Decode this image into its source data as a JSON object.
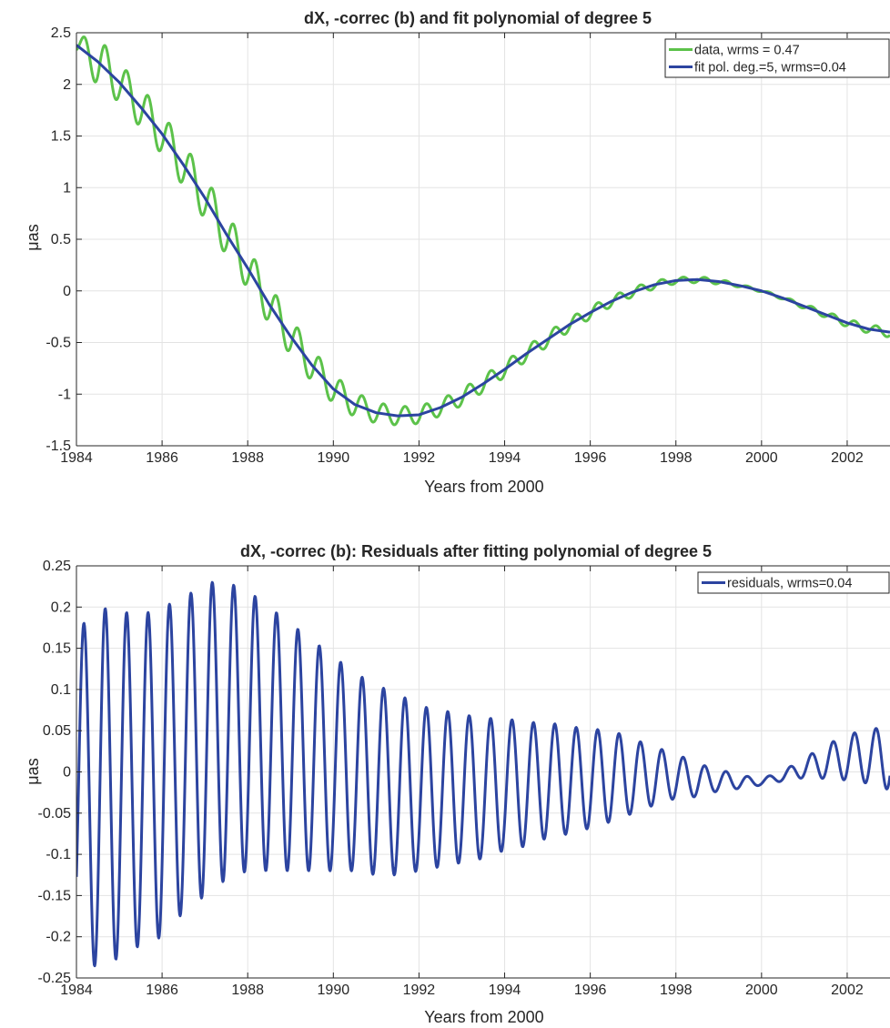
{
  "chart_data": [
    {
      "type": "line",
      "title": "dX, -correc (b) and fit polynomial of degree 5",
      "xlabel": "Years from 2000",
      "ylabel": "μas",
      "xlim": [
        1984,
        2003
      ],
      "ylim": [
        -1.5,
        2.5
      ],
      "xticks": [
        1984,
        1986,
        1988,
        1990,
        1992,
        1994,
        1996,
        1998,
        2000,
        2002
      ],
      "xtick_labels": [
        "1984",
        "1986",
        "1988",
        "1990",
        "1992",
        "1994",
        "1996",
        "1998",
        "2000",
        "2002"
      ],
      "yticks": [
        -1.5,
        -1,
        -0.5,
        0,
        0.5,
        1,
        1.5,
        2,
        2.5
      ],
      "ytick_labels": [
        "-1.5",
        "-1",
        "-0.5",
        "0",
        "0.5",
        "1",
        "1.5",
        "2",
        "2.5"
      ],
      "grid": true,
      "legend_position": "top-right",
      "series": [
        {
          "name": "data, wrms = 0.47",
          "color": "#5cc24a",
          "oscillation_period_years": 0.5,
          "x": [
            1984.0,
            1984.5,
            1985.0,
            1985.5,
            1986.0,
            1986.5,
            1987.0,
            1987.5,
            1988.0,
            1988.5,
            1989.0,
            1989.5,
            1990.0,
            1990.5,
            1991.0,
            1991.5,
            1992.0,
            1992.5,
            1993.0,
            1993.5,
            1994.0,
            1994.5,
            1995.0,
            1995.5,
            1996.0,
            1996.5,
            1997.0,
            1997.5,
            1998.0,
            1998.5,
            1999.0,
            1999.5,
            2000.0,
            2000.5,
            2001.0,
            2001.5,
            2002.0,
            2002.5,
            2003.0
          ],
          "trend": [
            2.38,
            2.22,
            2.02,
            1.78,
            1.52,
            1.22,
            0.9,
            0.55,
            0.22,
            -0.13,
            -0.44,
            -0.72,
            -0.95,
            -1.1,
            -1.18,
            -1.21,
            -1.2,
            -1.13,
            -1.03,
            -0.9,
            -0.76,
            -0.61,
            -0.47,
            -0.33,
            -0.21,
            -0.1,
            -0.01,
            0.06,
            0.1,
            0.11,
            0.09,
            0.05,
            0.0,
            -0.07,
            -0.15,
            -0.23,
            -0.31,
            -0.37,
            -0.4
          ],
          "amplitude": [
            0.08,
            0.24,
            0.19,
            0.2,
            0.2,
            0.21,
            0.21,
            0.21,
            0.2,
            0.19,
            0.18,
            0.16,
            0.14,
            0.12,
            0.1,
            0.09,
            0.085,
            0.08,
            0.08,
            0.08,
            0.075,
            0.07,
            0.07,
            0.065,
            0.06,
            0.05,
            0.045,
            0.04,
            0.03,
            0.03,
            0.025,
            0.015,
            0.012,
            0.015,
            0.025,
            0.03,
            0.04,
            0.04,
            0.05
          ]
        },
        {
          "name": "fit pol. deg.=5, wrms=0.04",
          "color": "#2c44a0",
          "x": [
            1984.0,
            1984.5,
            1985.0,
            1985.5,
            1986.0,
            1986.5,
            1987.0,
            1987.5,
            1988.0,
            1988.5,
            1989.0,
            1989.5,
            1990.0,
            1990.5,
            1991.0,
            1991.5,
            1992.0,
            1992.5,
            1993.0,
            1993.5,
            1994.0,
            1994.5,
            1995.0,
            1995.5,
            1996.0,
            1996.5,
            1997.0,
            1997.5,
            1998.0,
            1998.5,
            1999.0,
            1999.5,
            2000.0,
            2000.5,
            2001.0,
            2001.5,
            2002.0,
            2002.5,
            2003.0
          ],
          "y": [
            2.38,
            2.22,
            2.02,
            1.78,
            1.52,
            1.22,
            0.9,
            0.55,
            0.22,
            -0.13,
            -0.44,
            -0.72,
            -0.95,
            -1.1,
            -1.18,
            -1.21,
            -1.2,
            -1.13,
            -1.03,
            -0.9,
            -0.76,
            -0.61,
            -0.47,
            -0.33,
            -0.21,
            -0.1,
            -0.01,
            0.06,
            0.1,
            0.11,
            0.09,
            0.05,
            0.0,
            -0.07,
            -0.15,
            -0.23,
            -0.31,
            -0.37,
            -0.4
          ]
        }
      ]
    },
    {
      "type": "line",
      "title": "dX, -correc (b): Residuals after fitting polynomial of degree 5",
      "xlabel": "Years from 2000",
      "ylabel": "μas",
      "xlim": [
        1984,
        2003
      ],
      "ylim": [
        -0.25,
        0.25
      ],
      "xticks": [
        1984,
        1986,
        1988,
        1990,
        1992,
        1994,
        1996,
        1998,
        2000,
        2002
      ],
      "xtick_labels": [
        "1984",
        "1986",
        "1988",
        "1990",
        "1992",
        "1994",
        "1996",
        "1998",
        "2000",
        "2002"
      ],
      "yticks": [
        -0.25,
        -0.2,
        -0.15,
        -0.1,
        -0.05,
        0,
        0.05,
        0.1,
        0.15,
        0.2,
        0.25
      ],
      "ytick_labels": [
        "-0.25",
        "-0.2",
        "-0.15",
        "-0.1",
        "-0.05",
        "0",
        "0.05",
        "0.1",
        "0.15",
        "0.2",
        "0.25"
      ],
      "grid": true,
      "legend_position": "top-right",
      "series": [
        {
          "name": "residuals, wrms=0.04",
          "color": "#2c44a0",
          "oscillation_period_years": 0.5,
          "x": [
            1984.0,
            1984.5,
            1985.0,
            1985.5,
            1986.0,
            1986.5,
            1987.0,
            1987.5,
            1988.0,
            1988.5,
            1989.0,
            1989.5,
            1990.0,
            1990.5,
            1991.0,
            1991.5,
            1992.0,
            1992.5,
            1993.0,
            1993.5,
            1994.0,
            1994.5,
            1995.0,
            1995.5,
            1996.0,
            1996.5,
            1997.0,
            1997.5,
            1998.0,
            1998.5,
            1999.0,
            1999.5,
            2000.0,
            2000.5,
            2001.0,
            2001.5,
            2002.0,
            2002.5,
            2003.0
          ],
          "center": [
            -0.02,
            -0.02,
            -0.015,
            -0.01,
            0.0,
            0.02,
            0.04,
            0.05,
            0.05,
            0.04,
            0.03,
            0.02,
            0.01,
            0.0,
            -0.01,
            -0.015,
            -0.02,
            -0.02,
            -0.02,
            -0.02,
            -0.015,
            -0.015,
            -0.01,
            -0.01,
            -0.008,
            -0.005,
            -0.005,
            -0.005,
            -0.005,
            -0.01,
            -0.01,
            -0.012,
            -0.012,
            -0.005,
            0.005,
            0.012,
            0.018,
            0.018,
            0.018
          ],
          "amplitude": [
            0.19,
            0.22,
            0.21,
            0.2,
            0.2,
            0.19,
            0.19,
            0.18,
            0.17,
            0.16,
            0.15,
            0.14,
            0.13,
            0.12,
            0.115,
            0.11,
            0.1,
            0.095,
            0.09,
            0.085,
            0.08,
            0.075,
            0.07,
            0.065,
            0.06,
            0.055,
            0.045,
            0.035,
            0.027,
            0.02,
            0.013,
            0.008,
            0.004,
            0.006,
            0.012,
            0.02,
            0.028,
            0.032,
            0.04
          ]
        }
      ]
    }
  ]
}
